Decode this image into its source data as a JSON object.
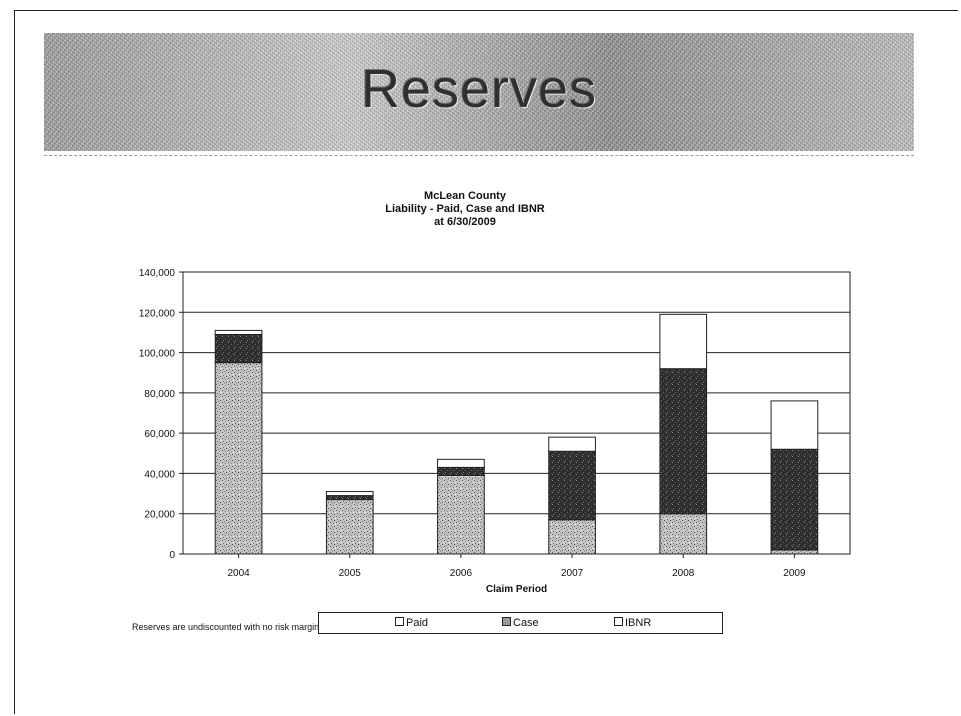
{
  "slide": {
    "title": "Reserves"
  },
  "chart_data": {
    "type": "bar",
    "stacked": true,
    "title": [
      "McLean County",
      "Liability - Paid, Case and IBNR",
      "at 6/30/2009"
    ],
    "xlabel": "Claim Period",
    "ylabel": "",
    "categories": [
      "2004",
      "2005",
      "2006",
      "2007",
      "2008",
      "2009"
    ],
    "ylim": [
      0,
      140000
    ],
    "yticks": [
      0,
      20000,
      40000,
      60000,
      80000,
      100000,
      120000,
      140000
    ],
    "ytick_labels": [
      "0",
      "20,000",
      "40,000",
      "60,000",
      "80,000",
      "100,000",
      "120,000",
      "140,000"
    ],
    "grid": true,
    "legend_position": "bottom",
    "series": [
      {
        "name": "Paid",
        "values": [
          95000,
          27000,
          39000,
          17000,
          20000,
          2000
        ],
        "color": "#b8b8b8",
        "pattern": "speckle-light"
      },
      {
        "name": "Case",
        "values": [
          14000,
          2000,
          4000,
          34000,
          72000,
          50000
        ],
        "color": "#3a3a3a",
        "pattern": "speckle-dark"
      },
      {
        "name": "IBNR",
        "values": [
          2000,
          2000,
          4000,
          7000,
          27000,
          24000
        ],
        "color": "#ffffff",
        "pattern": "none"
      }
    ]
  },
  "legend": {
    "items": [
      "Paid",
      "Case",
      "IBNR"
    ]
  },
  "footnote": "Reserves are undiscounted with no risk margin"
}
